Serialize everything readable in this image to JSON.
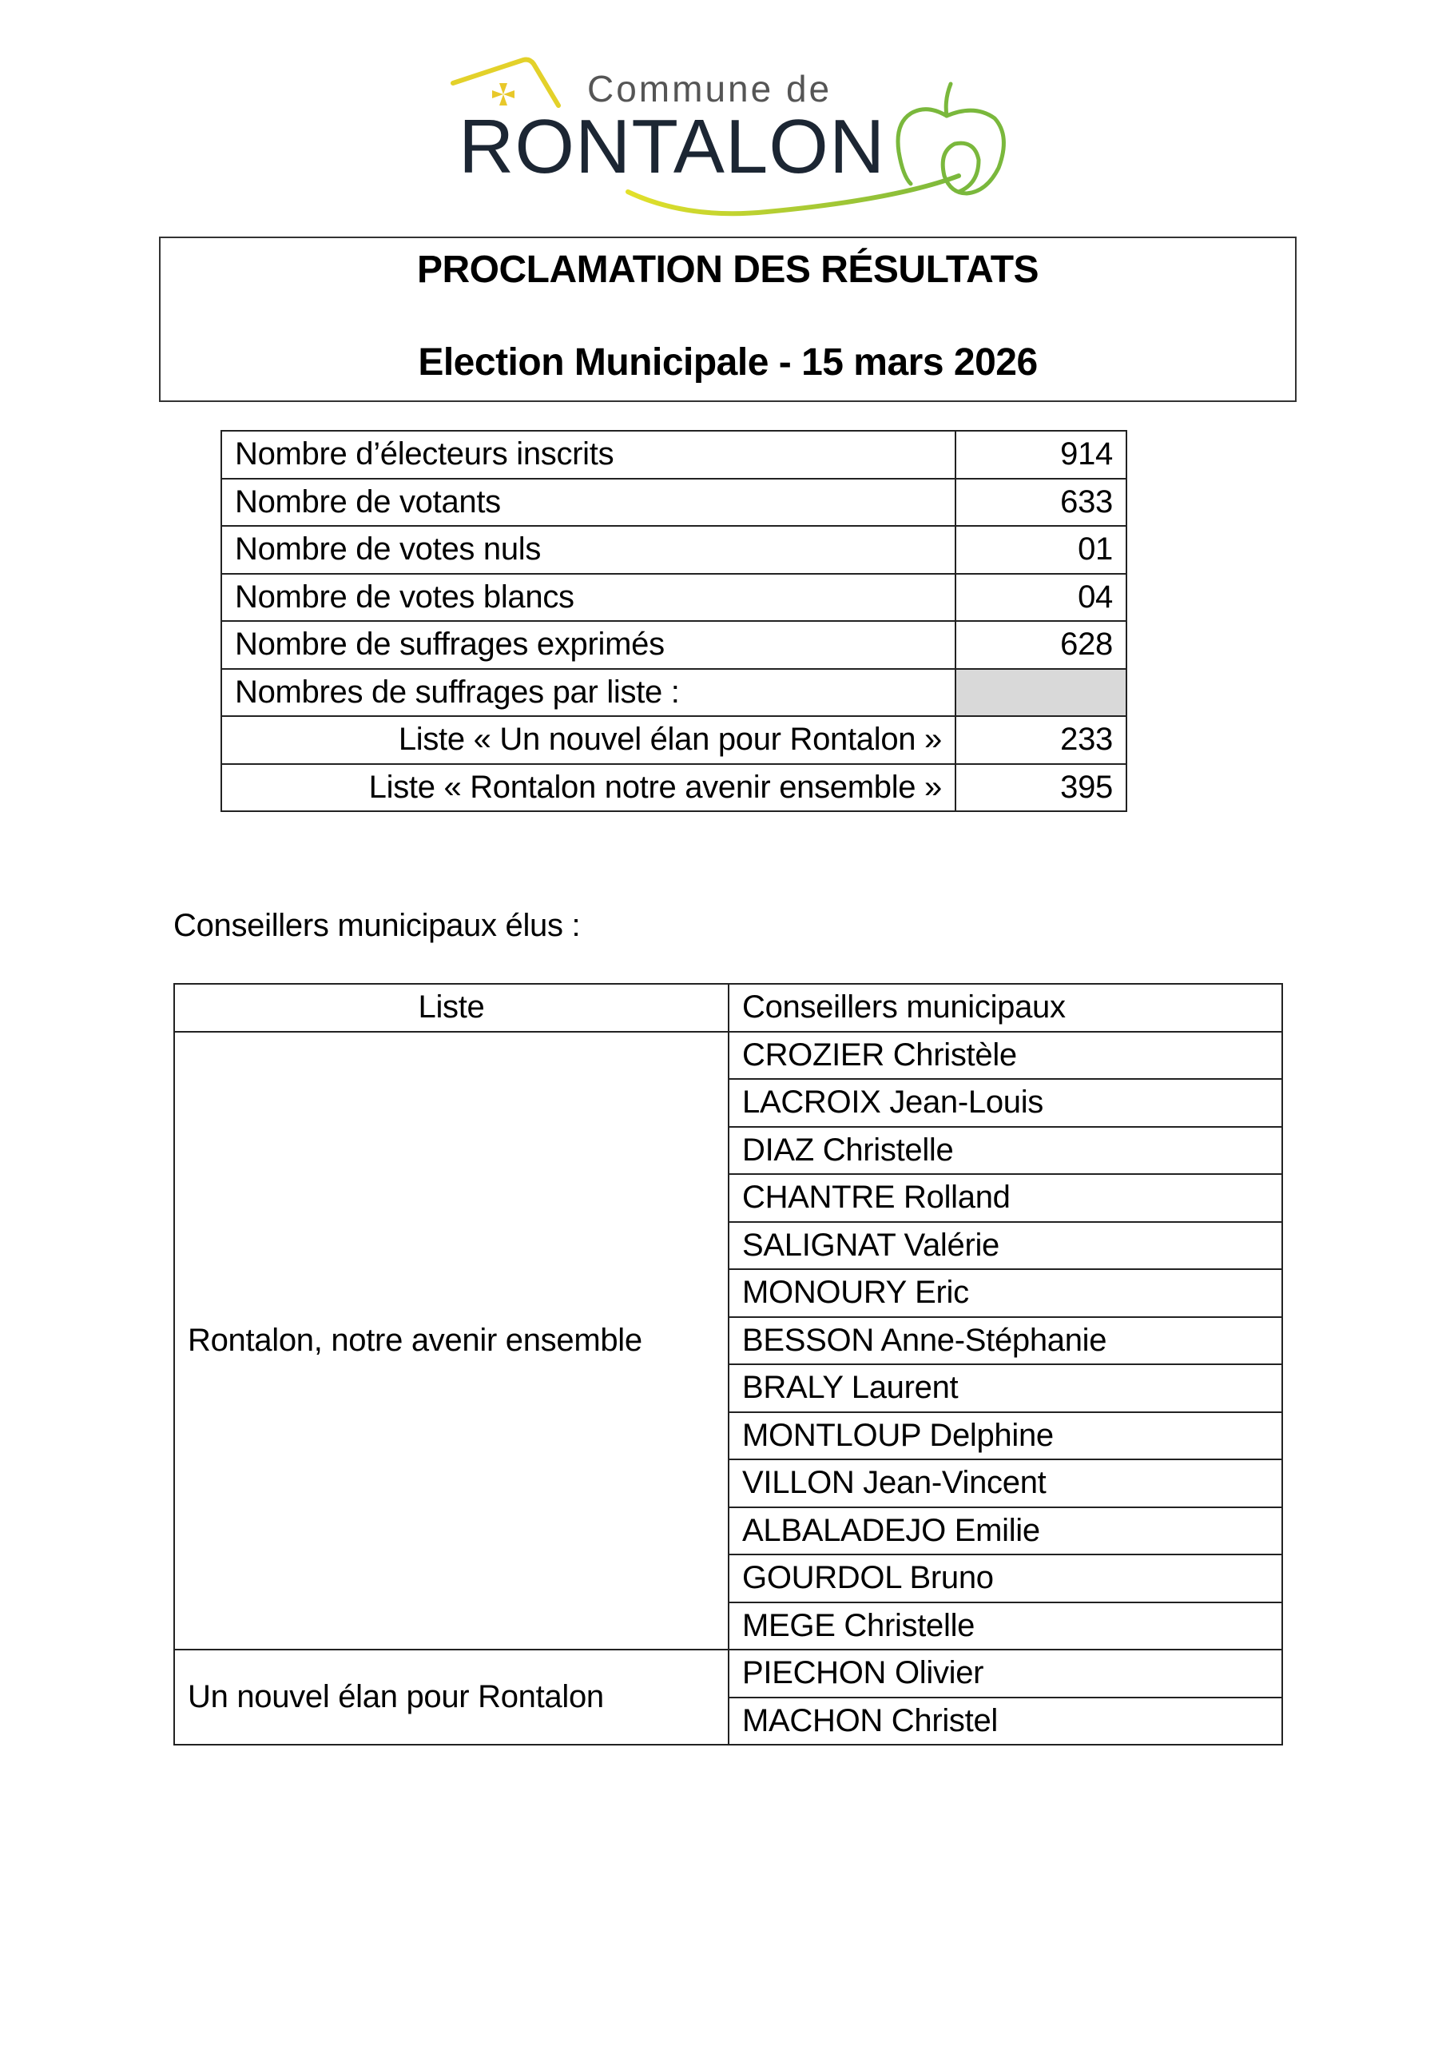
{
  "logo": {
    "text_small": "Commune de",
    "text_large": "RONTALON",
    "colors": {
      "text": "#1c2633",
      "yellow": "#e3d12a",
      "green": "#7ab83c"
    }
  },
  "header": {
    "title": "PROCLAMATION DES RÉSULTATS",
    "subtitle": "Election Municipale - 15 mars 2026"
  },
  "results": [
    {
      "label": "Nombre d’électeurs inscrits",
      "value": "914"
    },
    {
      "label": "Nombre de votants",
      "value": "633"
    },
    {
      "label": "Nombre de votes nuls",
      "value": "01"
    },
    {
      "label": "Nombre de votes blancs",
      "value": "04"
    },
    {
      "label": "Nombre de suffrages exprimés",
      "value": "628"
    },
    {
      "label": "Nombres de suffrages par liste :",
      "value": ""
    },
    {
      "label": "Liste « Un nouvel élan pour Rontalon »",
      "value": "233"
    },
    {
      "label": "Liste « Rontalon notre avenir ensemble »",
      "value": "395"
    }
  ],
  "elus": {
    "heading": "Conseillers municipaux élus :",
    "col_list": "Liste",
    "col_councillors": "Conseillers municipaux",
    "groups": [
      {
        "list": "Rontalon, notre avenir ensemble",
        "members": [
          "CROZIER Christèle",
          "LACROIX Jean-Louis",
          "DIAZ Christelle",
          "CHANTRE Rolland",
          "SALIGNAT Valérie",
          "MONOURY Eric",
          "BESSON Anne-Stéphanie",
          "BRALY Laurent",
          "MONTLOUP Delphine",
          "VILLON Jean-Vincent",
          "ALBALADEJO Emilie",
          "GOURDOL Bruno",
          "MEGE Christelle"
        ]
      },
      {
        "list": "Un nouvel élan pour Rontalon",
        "members": [
          "PIECHON Olivier",
          "MACHON Christel"
        ]
      }
    ]
  }
}
